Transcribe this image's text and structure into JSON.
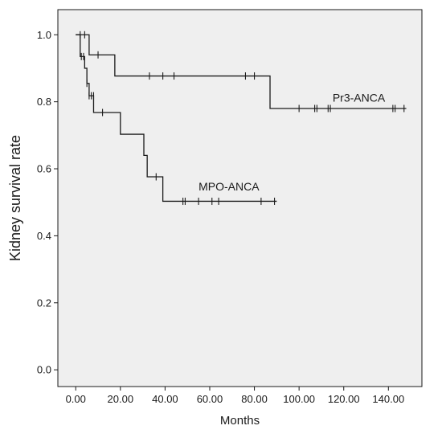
{
  "chart_data": {
    "type": "line",
    "subtype": "kaplan-meier step",
    "xlabel": "Months",
    "ylabel": "Kidney survival rate",
    "xlim": [
      -8,
      155
    ],
    "ylim": [
      -0.05,
      1.075
    ],
    "xticks": [
      0,
      20,
      40,
      60,
      80,
      100,
      120,
      140
    ],
    "xtick_labels": [
      "0.00",
      "20.00",
      "40.00",
      "60.00",
      "80.00",
      "100.00",
      "120.00",
      "140.00"
    ],
    "yticks": [
      0,
      0.2,
      0.4,
      0.6,
      0.8,
      1.0
    ],
    "ytick_labels": [
      "0.0",
      "0.2",
      "0.4",
      "0.6",
      "0.8",
      "1.0"
    ],
    "plot_background": "#efefef",
    "line_color": "#1a1a1a",
    "grid": false,
    "legend": "none",
    "series": [
      {
        "name": "Pr3-ANCA",
        "label_at": [
          115,
          0.8
        ],
        "steps": [
          [
            0,
            1.0
          ],
          [
            6,
            0.94
          ],
          [
            17.5,
            0.877
          ],
          [
            87,
            0.78
          ],
          [
            148,
            0.78
          ]
        ],
        "censored": [
          [
            2,
            1.0
          ],
          [
            4,
            1.0
          ],
          [
            10,
            0.94
          ],
          [
            33,
            0.877
          ],
          [
            39,
            0.877
          ],
          [
            44,
            0.877
          ],
          [
            76,
            0.877
          ],
          [
            80,
            0.877
          ],
          [
            100,
            0.78
          ],
          [
            107,
            0.78
          ],
          [
            108,
            0.78
          ],
          [
            113,
            0.78
          ],
          [
            114,
            0.78
          ],
          [
            142,
            0.78
          ],
          [
            143,
            0.78
          ],
          [
            147,
            0.78
          ]
        ]
      },
      {
        "name": "MPO-ANCA",
        "label_at": [
          55,
          0.535
        ],
        "steps": [
          [
            0,
            1.0
          ],
          [
            2,
            0.935
          ],
          [
            4,
            0.9
          ],
          [
            5,
            0.855
          ],
          [
            6,
            0.818
          ],
          [
            8,
            0.768
          ],
          [
            20,
            0.703
          ],
          [
            30.5,
            0.64
          ],
          [
            32,
            0.576
          ],
          [
            39,
            0.503
          ],
          [
            90,
            0.503
          ]
        ],
        "censored": [
          [
            2.5,
            0.935
          ],
          [
            3.5,
            0.935
          ],
          [
            5,
            0.855
          ],
          [
            6,
            0.818
          ],
          [
            7,
            0.818
          ],
          [
            8,
            0.818
          ],
          [
            12,
            0.768
          ],
          [
            36,
            0.576
          ],
          [
            48,
            0.503
          ],
          [
            49,
            0.503
          ],
          [
            55,
            0.503
          ],
          [
            61,
            0.503
          ],
          [
            64,
            0.503
          ],
          [
            83,
            0.503
          ],
          [
            89,
            0.503
          ]
        ]
      }
    ]
  }
}
